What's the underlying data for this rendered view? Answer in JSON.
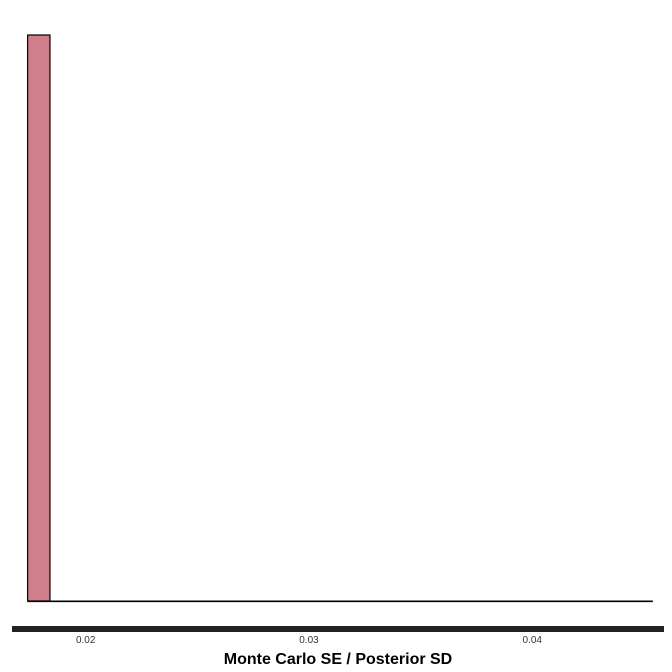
{
  "chart_data": {
    "type": "bar",
    "title": "",
    "xlabel": "Monte Carlo SE / Posterior SD",
    "ylabel": "",
    "xlim": [
      0.0167,
      0.0459
    ],
    "ylim": [
      0,
      29
    ],
    "x_ticks": [
      0.02,
      0.03,
      0.04
    ],
    "x_tick_labels": [
      "0.02",
      "0.03",
      "0.04"
    ],
    "bin_width": 0.001,
    "bins_start": 0.0174,
    "counts": [
      29,
      0,
      0,
      0,
      0,
      0,
      0,
      0,
      0,
      0,
      0,
      0,
      0,
      0,
      0,
      0,
      0,
      0,
      0,
      0,
      0,
      0,
      0,
      0,
      0,
      0,
      0,
      0
    ],
    "fill_color": "#d07e8a",
    "edge_color": "#000000",
    "grid": false
  }
}
